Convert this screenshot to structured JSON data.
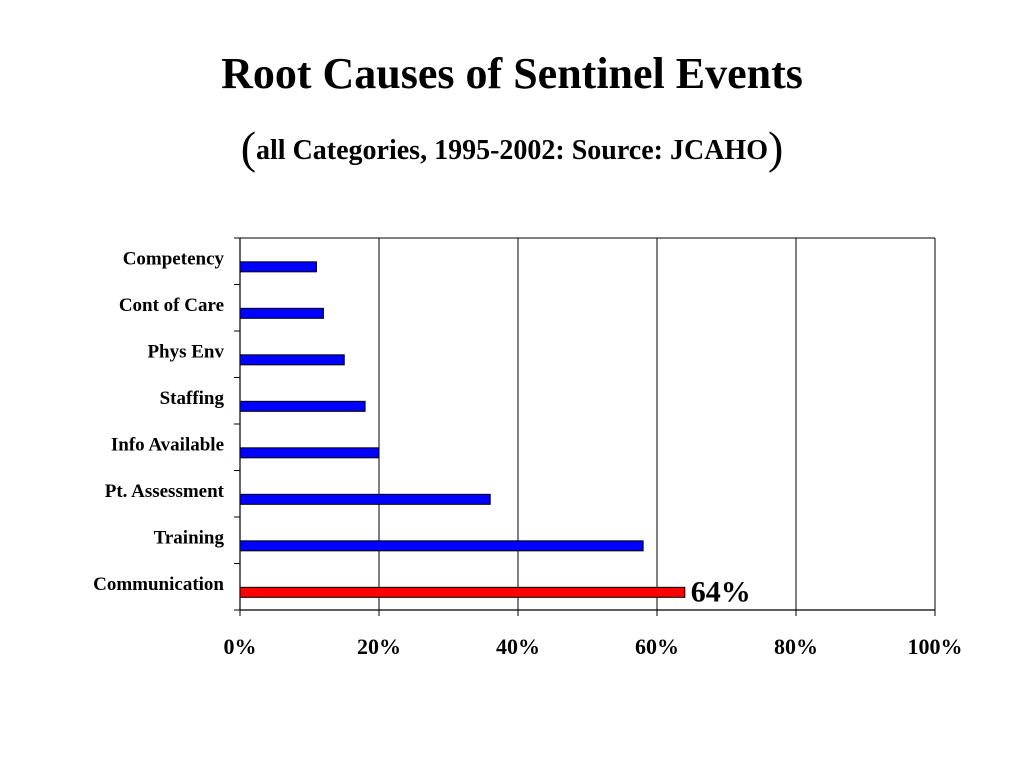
{
  "slide": {
    "title": "Root Causes of Sentinel Events",
    "subtitle_open": "(",
    "subtitle_text": "all Categories, 1995-2002:  Source: JCAHO",
    "subtitle_close": ")"
  },
  "chart_data": {
    "type": "bar",
    "orientation": "horizontal",
    "title": "Root Causes of Sentinel Events",
    "subtitle": "(all Categories, 1995-2002:  Source: JCAHO)",
    "xlabel": "",
    "ylabel": "",
    "xlim": [
      0,
      100
    ],
    "x_ticks": [
      "0%",
      "20%",
      "40%",
      "60%",
      "80%",
      "100%"
    ],
    "grid": "vertical",
    "categories": [
      "Competency",
      "Cont of Care",
      "Phys Env",
      "Staffing",
      "Info Available",
      "Pt. Assessment",
      "Training",
      "Communication"
    ],
    "values": [
      11,
      12,
      15,
      18,
      20,
      36,
      58,
      64
    ],
    "colors": [
      "#0000ff",
      "#0000ff",
      "#0000ff",
      "#0000ff",
      "#0000ff",
      "#0000ff",
      "#0000ff",
      "#ff0000"
    ],
    "annotations": [
      {
        "category": "Communication",
        "text": "64%"
      }
    ]
  }
}
